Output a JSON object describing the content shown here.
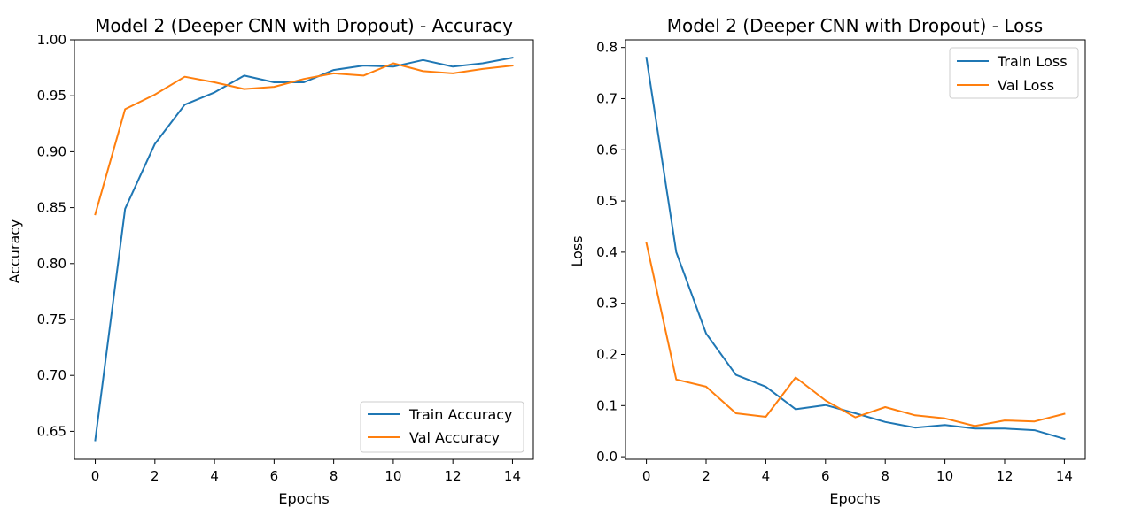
{
  "chart_data": [
    {
      "type": "line",
      "title": "Model 2 (Deeper CNN with Dropout) - Accuracy",
      "xlabel": "Epochs",
      "ylabel": "Accuracy",
      "x": [
        0,
        1,
        2,
        3,
        4,
        5,
        6,
        7,
        8,
        9,
        10,
        11,
        12,
        13,
        14
      ],
      "xlim": [
        -0.7,
        14.7
      ],
      "ylim": [
        0.625,
        1.0
      ],
      "xticks": [
        "0",
        "2",
        "4",
        "6",
        "8",
        "10",
        "12",
        "14"
      ],
      "yticks": [
        "0.65",
        "0.70",
        "0.75",
        "0.80",
        "0.85",
        "0.90",
        "0.95",
        "1.00"
      ],
      "legend": "lower-right",
      "grid": false,
      "series": [
        {
          "name": "Train Accuracy",
          "color": "#1f77b4",
          "values": [
            0.642,
            0.849,
            0.907,
            0.942,
            0.953,
            0.968,
            0.962,
            0.962,
            0.973,
            0.977,
            0.976,
            0.982,
            0.976,
            0.979,
            0.984
          ]
        },
        {
          "name": "Val Accuracy",
          "color": "#ff7f0e",
          "values": [
            0.844,
            0.938,
            0.951,
            0.967,
            0.962,
            0.956,
            0.958,
            0.965,
            0.97,
            0.968,
            0.979,
            0.972,
            0.97,
            0.974,
            0.977
          ]
        }
      ]
    },
    {
      "type": "line",
      "title": "Model 2 (Deeper CNN with Dropout) - Loss",
      "xlabel": "Epochs",
      "ylabel": "Loss",
      "x": [
        0,
        1,
        2,
        3,
        4,
        5,
        6,
        7,
        8,
        9,
        10,
        11,
        12,
        13,
        14
      ],
      "xlim": [
        -0.7,
        14.7
      ],
      "ylim": [
        -0.005,
        0.815
      ],
      "xticks": [
        "0",
        "2",
        "4",
        "6",
        "8",
        "10",
        "12",
        "14"
      ],
      "yticks": [
        "0.0",
        "0.1",
        "0.2",
        "0.3",
        "0.4",
        "0.5",
        "0.6",
        "0.7",
        "0.8"
      ],
      "legend": "upper-right",
      "grid": false,
      "series": [
        {
          "name": "Train Loss",
          "color": "#1f77b4",
          "values": [
            0.78,
            0.4,
            0.241,
            0.16,
            0.137,
            0.093,
            0.101,
            0.085,
            0.068,
            0.057,
            0.062,
            0.055,
            0.055,
            0.052,
            0.035
          ]
        },
        {
          "name": "Val Loss",
          "color": "#ff7f0e",
          "values": [
            0.418,
            0.151,
            0.137,
            0.085,
            0.078,
            0.155,
            0.11,
            0.077,
            0.097,
            0.081,
            0.075,
            0.06,
            0.071,
            0.069,
            0.084
          ]
        }
      ]
    }
  ]
}
